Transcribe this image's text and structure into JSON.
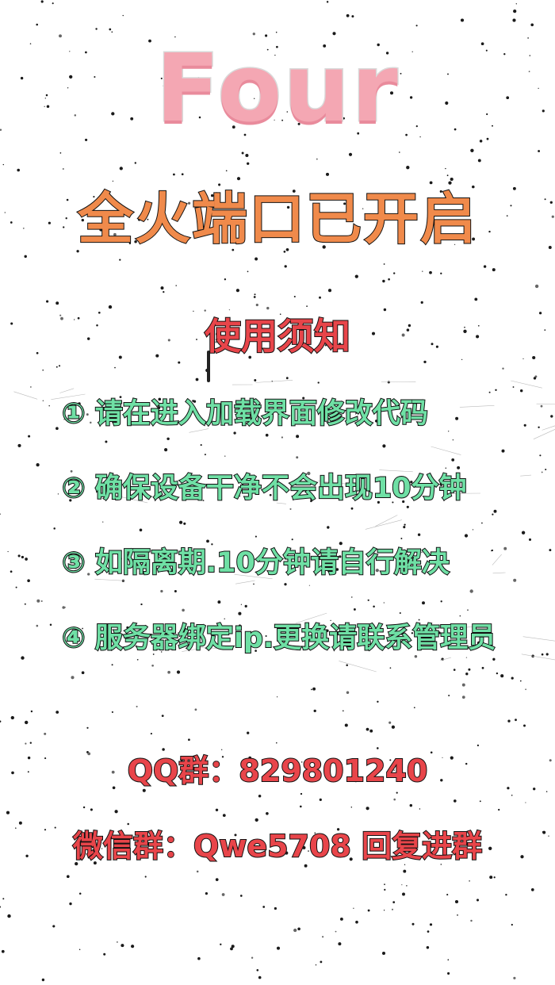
{
  "logo_text": "Four",
  "headline": "全火端口已开启",
  "notice_title": "使用须知",
  "rules": [
    "① 请在进入加载界面修改代码",
    "② 确保设备干净不会出现10分钟",
    "③ 如隔离期.10分钟请自行解决",
    "④ 服务器绑定ip.更换请联系管理员"
  ],
  "contacts": {
    "qq": "QQ群：829801240",
    "wechat": "微信群：Qwe5708 回复进群"
  },
  "colors": {
    "logo": "#f4a7b3",
    "headline": "#f08a4b",
    "notice_title": "#e8454a",
    "rules": "#6fe0a5",
    "contacts": "#e8454a",
    "background": "#ffffff"
  }
}
